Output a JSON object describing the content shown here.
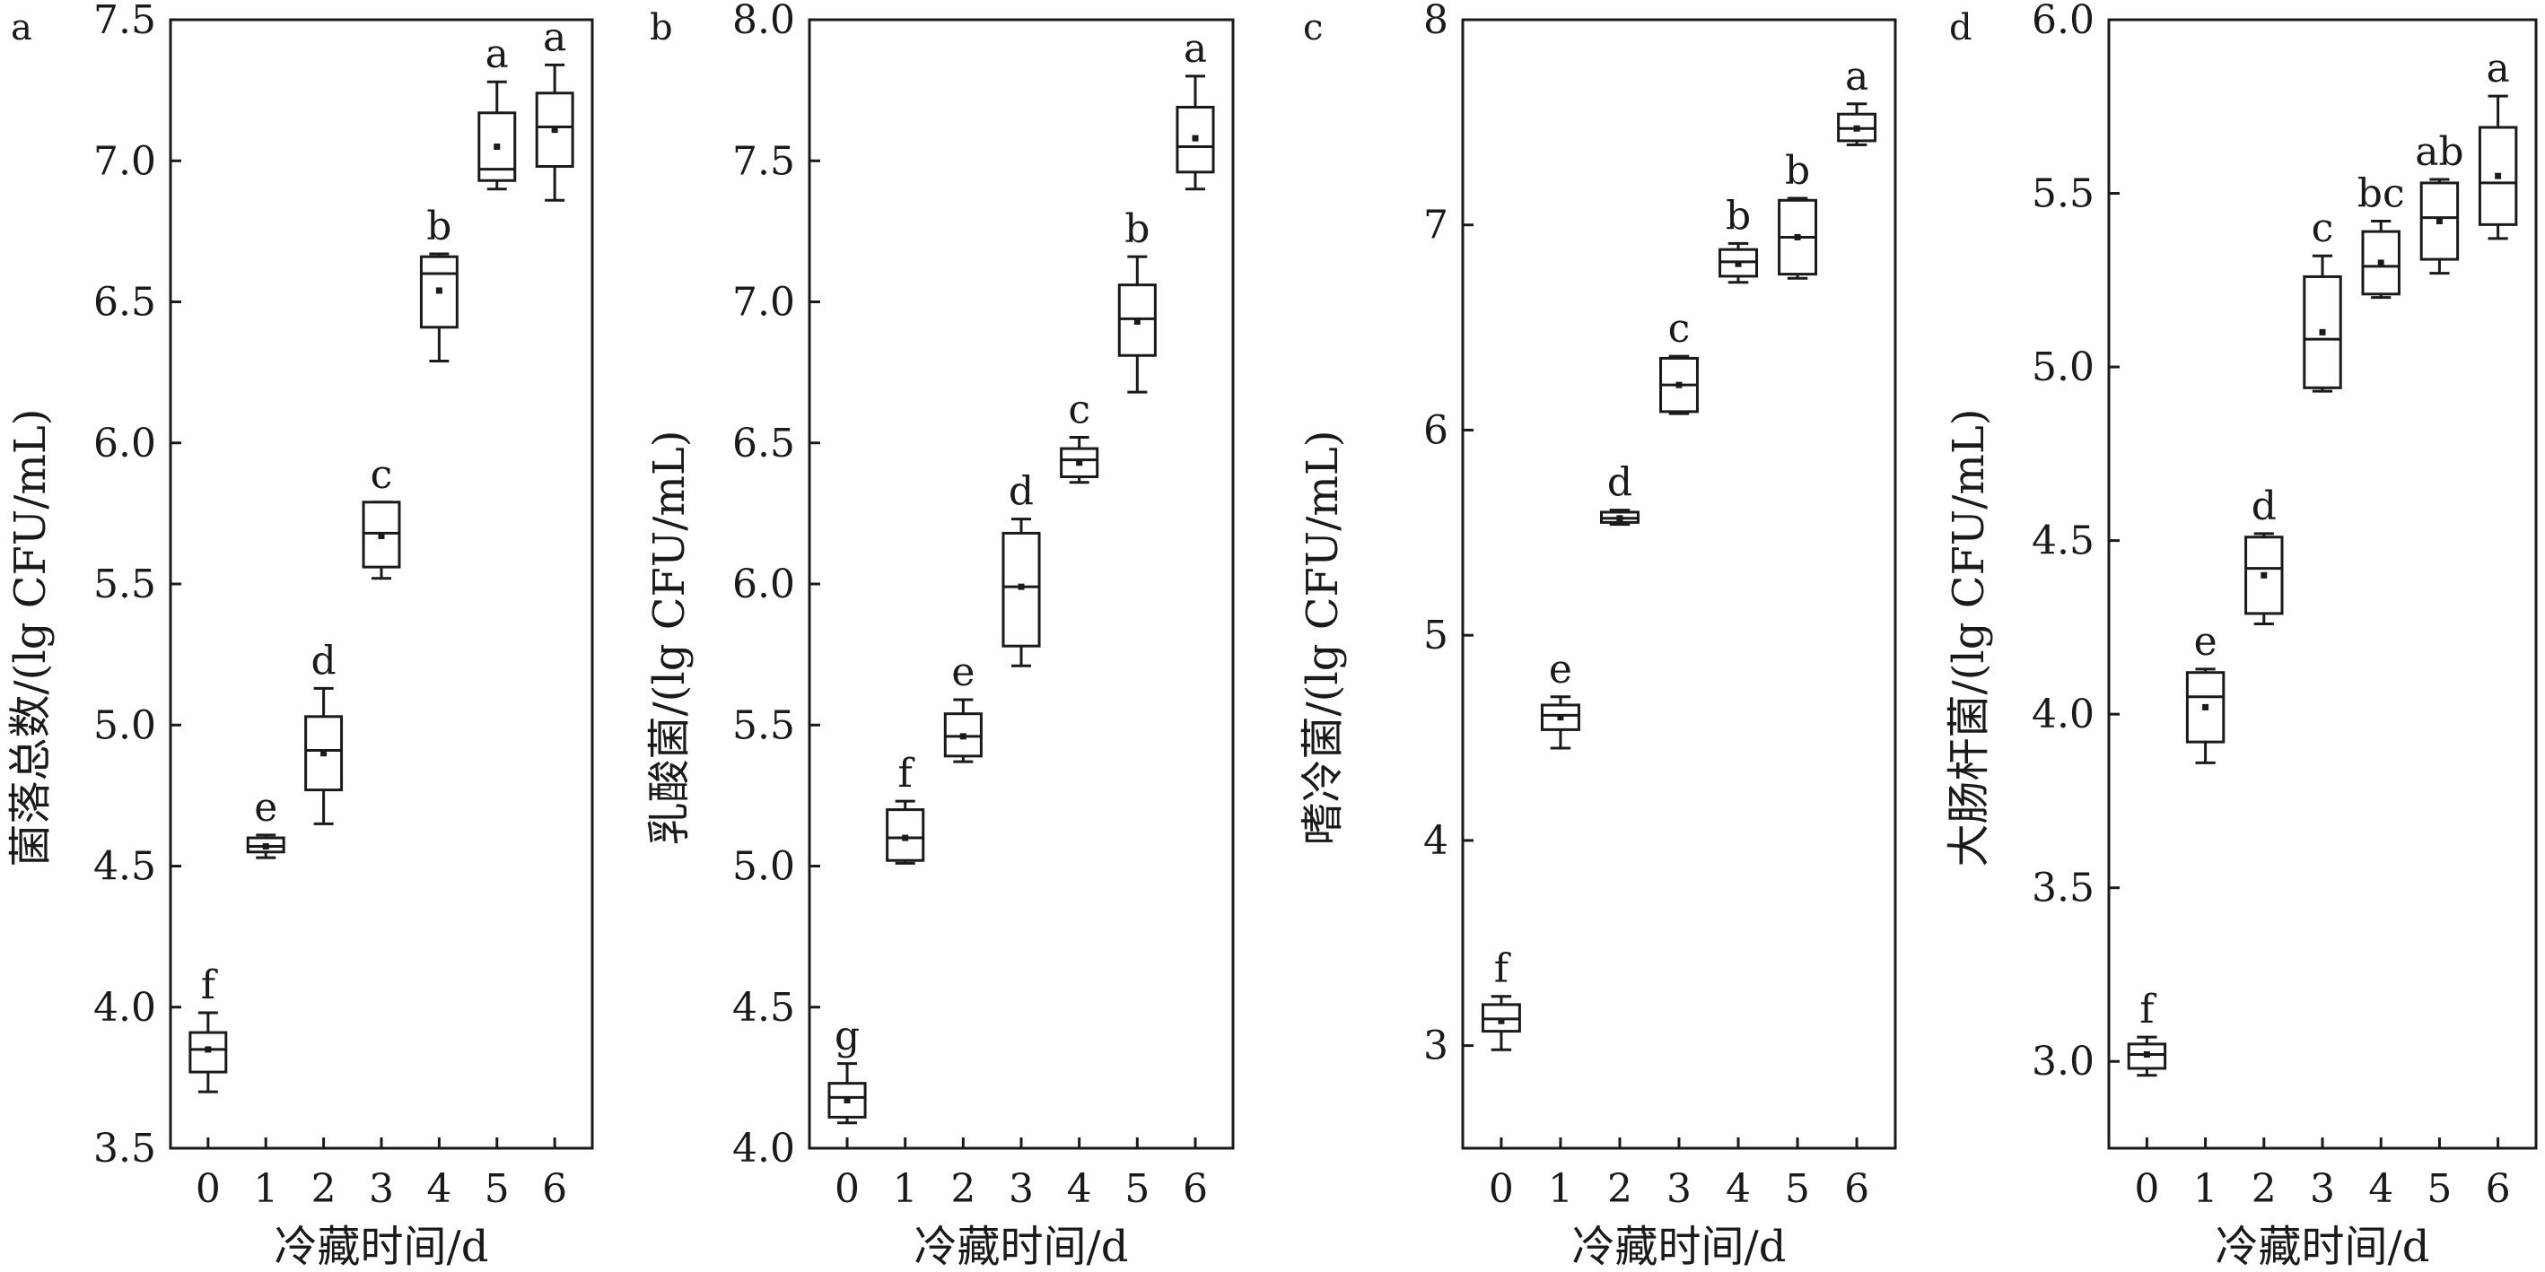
{
  "chart_data": [
    {
      "panel": "a",
      "type": "box",
      "ylabel": "菌落总数/(lg CFU/mL)",
      "xlabel": "冷藏时间/d",
      "ylim": [
        3.5,
        7.5
      ],
      "yticks": [
        "3.5",
        "4.0",
        "4.5",
        "5.0",
        "5.5",
        "6.0",
        "6.5",
        "7.0",
        "7.5"
      ],
      "categories": [
        "0",
        "1",
        "2",
        "3",
        "4",
        "5",
        "6"
      ],
      "boxes": [
        {
          "x": "0",
          "whisker_low": 3.7,
          "q1": 3.77,
          "median": 3.85,
          "q3": 3.91,
          "whisker_high": 3.98,
          "mean": 3.85,
          "letter": "f"
        },
        {
          "x": "1",
          "whisker_low": 4.53,
          "q1": 4.55,
          "median": 4.57,
          "q3": 4.6,
          "whisker_high": 4.61,
          "mean": 4.57,
          "letter": "e"
        },
        {
          "x": "2",
          "whisker_low": 4.65,
          "q1": 4.77,
          "median": 4.91,
          "q3": 5.03,
          "whisker_high": 5.13,
          "mean": 4.9,
          "letter": "d"
        },
        {
          "x": "3",
          "whisker_low": 5.52,
          "q1": 5.56,
          "median": 5.68,
          "q3": 5.79,
          "whisker_high": 5.79,
          "mean": 5.67,
          "letter": "c"
        },
        {
          "x": "4",
          "whisker_low": 6.29,
          "q1": 6.41,
          "median": 6.6,
          "q3": 6.66,
          "whisker_high": 6.67,
          "mean": 6.54,
          "letter": "b"
        },
        {
          "x": "5",
          "whisker_low": 6.9,
          "q1": 6.93,
          "median": 6.97,
          "q3": 7.17,
          "whisker_high": 7.28,
          "mean": 7.05,
          "letter": "a"
        },
        {
          "x": "6",
          "whisker_low": 6.86,
          "q1": 6.98,
          "median": 7.12,
          "q3": 7.24,
          "whisker_high": 7.34,
          "mean": 7.11,
          "letter": "a"
        }
      ]
    },
    {
      "panel": "b",
      "type": "box",
      "ylabel": "乳酸菌/(lg CFU/mL)",
      "xlabel": "冷藏时间/d",
      "ylim": [
        4.0,
        8.0
      ],
      "yticks": [
        "4.0",
        "4.5",
        "5.0",
        "5.5",
        "6.0",
        "6.5",
        "7.0",
        "7.5",
        "8.0"
      ],
      "categories": [
        "0",
        "1",
        "2",
        "3",
        "4",
        "5",
        "6"
      ],
      "boxes": [
        {
          "x": "0",
          "whisker_low": 4.09,
          "q1": 4.11,
          "median": 4.18,
          "q3": 4.23,
          "whisker_high": 4.3,
          "mean": 4.17,
          "letter": "g"
        },
        {
          "x": "1",
          "whisker_low": 5.01,
          "q1": 5.02,
          "median": 5.1,
          "q3": 5.2,
          "whisker_high": 5.23,
          "mean": 5.1,
          "letter": "f"
        },
        {
          "x": "2",
          "whisker_low": 5.37,
          "q1": 5.39,
          "median": 5.46,
          "q3": 5.54,
          "whisker_high": 5.59,
          "mean": 5.46,
          "letter": "e"
        },
        {
          "x": "3",
          "whisker_low": 5.71,
          "q1": 5.78,
          "median": 5.99,
          "q3": 6.18,
          "whisker_high": 6.23,
          "mean": 5.99,
          "letter": "d"
        },
        {
          "x": "4",
          "whisker_low": 6.36,
          "q1": 6.38,
          "median": 6.44,
          "q3": 6.48,
          "whisker_high": 6.52,
          "mean": 6.43,
          "letter": "c"
        },
        {
          "x": "5",
          "whisker_low": 6.68,
          "q1": 6.81,
          "median": 6.94,
          "q3": 7.06,
          "whisker_high": 7.16,
          "mean": 6.93,
          "letter": "b"
        },
        {
          "x": "6",
          "whisker_low": 7.4,
          "q1": 7.46,
          "median": 7.55,
          "q3": 7.69,
          "whisker_high": 7.8,
          "mean": 7.58,
          "letter": "a"
        }
      ]
    },
    {
      "panel": "c",
      "type": "box",
      "ylabel": "嗜冷菌/(lg CFU/mL)",
      "xlabel": "冷藏时间/d",
      "ylim": [
        2.5,
        8.0
      ],
      "yticks": [
        "3",
        "4",
        "5",
        "6",
        "7",
        "8"
      ],
      "categories": [
        "0",
        "1",
        "2",
        "3",
        "4",
        "5",
        "6"
      ],
      "boxes": [
        {
          "x": "0",
          "whisker_low": 2.98,
          "q1": 3.07,
          "median": 3.13,
          "q3": 3.2,
          "whisker_high": 3.24,
          "mean": 3.12,
          "letter": "f"
        },
        {
          "x": "1",
          "whisker_low": 4.45,
          "q1": 4.54,
          "median": 4.61,
          "q3": 4.66,
          "whisker_high": 4.7,
          "mean": 4.6,
          "letter": "e"
        },
        {
          "x": "2",
          "whisker_low": 5.54,
          "q1": 5.55,
          "median": 5.57,
          "q3": 5.6,
          "whisker_high": 5.61,
          "mean": 5.57,
          "letter": "d"
        },
        {
          "x": "3",
          "whisker_low": 6.08,
          "q1": 6.09,
          "median": 6.22,
          "q3": 6.35,
          "whisker_high": 6.36,
          "mean": 6.22,
          "letter": "c"
        },
        {
          "x": "4",
          "whisker_low": 6.72,
          "q1": 6.75,
          "median": 6.82,
          "q3": 6.88,
          "whisker_high": 6.91,
          "mean": 6.81,
          "letter": "b"
        },
        {
          "x": "5",
          "whisker_low": 6.74,
          "q1": 6.76,
          "median": 6.94,
          "q3": 7.12,
          "whisker_high": 7.13,
          "mean": 6.94,
          "letter": "b"
        },
        {
          "x": "6",
          "whisker_low": 7.39,
          "q1": 7.41,
          "median": 7.47,
          "q3": 7.54,
          "whisker_high": 7.59,
          "mean": 7.47,
          "letter": "a"
        }
      ]
    },
    {
      "panel": "d",
      "type": "box",
      "ylabel": "大肠杆菌/(lg CFU/mL)",
      "xlabel": "冷藏时间/d",
      "ylim": [
        2.75,
        6.0
      ],
      "yticks": [
        "3.0",
        "3.5",
        "4.0",
        "4.5",
        "5.0",
        "5.5",
        "6.0"
      ],
      "categories": [
        "0",
        "1",
        "2",
        "3",
        "4",
        "5",
        "6"
      ],
      "boxes": [
        {
          "x": "0",
          "whisker_low": 2.96,
          "q1": 2.98,
          "median": 3.02,
          "q3": 3.05,
          "whisker_high": 3.07,
          "mean": 3.02,
          "letter": "f"
        },
        {
          "x": "1",
          "whisker_low": 3.86,
          "q1": 3.92,
          "median": 4.05,
          "q3": 4.12,
          "whisker_high": 4.13,
          "mean": 4.02,
          "letter": "e"
        },
        {
          "x": "2",
          "whisker_low": 4.26,
          "q1": 4.29,
          "median": 4.42,
          "q3": 4.51,
          "whisker_high": 4.52,
          "mean": 4.4,
          "letter": "d"
        },
        {
          "x": "3",
          "whisker_low": 4.93,
          "q1": 4.94,
          "median": 5.08,
          "q3": 5.26,
          "whisker_high": 5.32,
          "mean": 5.1,
          "letter": "c"
        },
        {
          "x": "4",
          "whisker_low": 5.2,
          "q1": 5.21,
          "median": 5.29,
          "q3": 5.39,
          "whisker_high": 5.42,
          "mean": 5.3,
          "letter": "bc"
        },
        {
          "x": "5",
          "whisker_low": 5.27,
          "q1": 5.31,
          "median": 5.43,
          "q3": 5.53,
          "whisker_high": 5.54,
          "mean": 5.42,
          "letter": "ab"
        },
        {
          "x": "6",
          "whisker_low": 5.37,
          "q1": 5.41,
          "median": 5.53,
          "q3": 5.69,
          "whisker_high": 5.78,
          "mean": 5.55,
          "letter": "a"
        }
      ]
    }
  ]
}
